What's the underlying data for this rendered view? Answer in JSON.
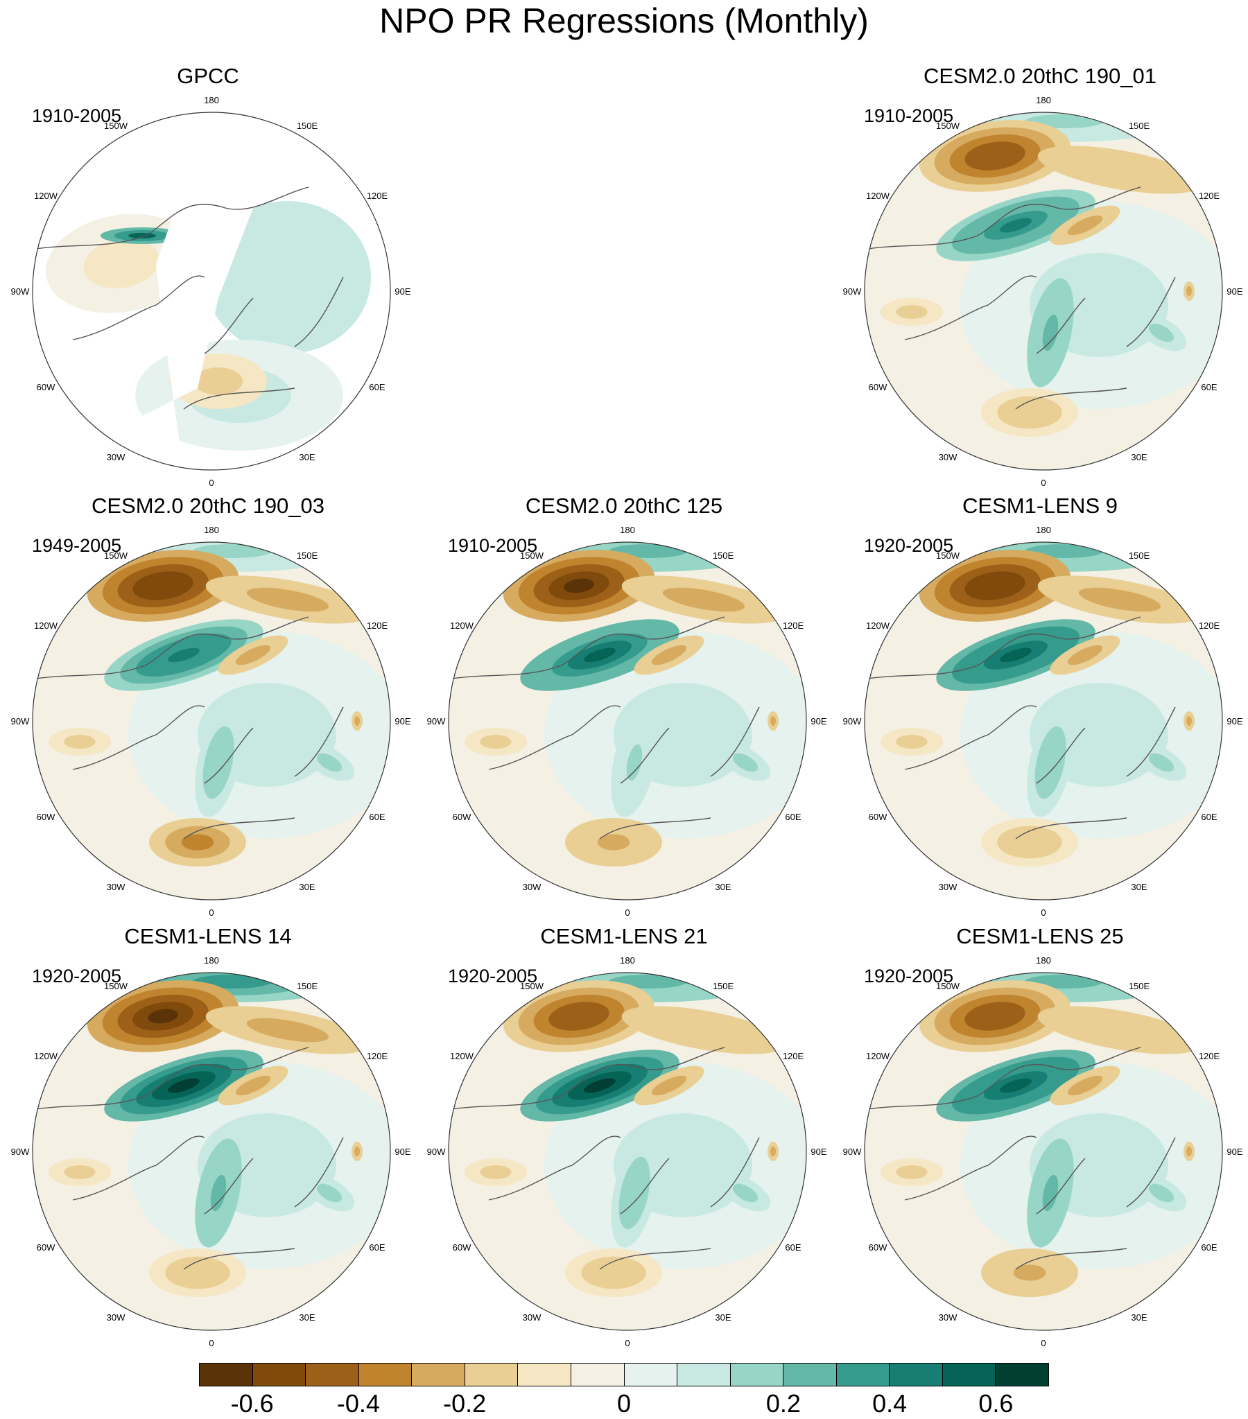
{
  "title": "NPO PR Regressions (Monthly)",
  "longitude_labels": [
    "180",
    "150E",
    "120E",
    "90E",
    "60E",
    "30E",
    "0",
    "30W",
    "60W",
    "90W",
    "120W",
    "150W"
  ],
  "panels": [
    {
      "id": "gpcc",
      "title": "GPCC",
      "period": "1910-2005",
      "row": 0,
      "col": 0,
      "obs": true,
      "features": {
        "aleutian_low": 0,
        "pacific_north": 0,
        "nw_america": 0.1,
        "atlantic_west": -0.05,
        "europe": -0.1
      }
    },
    {
      "id": "cesm2-190-01",
      "title": "CESM2.0 20thC 190_01",
      "period": "1910-2005",
      "row": 0,
      "col": 2,
      "obs": false,
      "features": {
        "aleutian_low": -0.5,
        "pacific_north": 0.1,
        "nw_america": 0.4,
        "atlantic_west": 0.2,
        "europe": -0.2
      }
    },
    {
      "id": "cesm2-190-03",
      "title": "CESM2.0 20thC 190_03",
      "period": "1949-2005",
      "row": 1,
      "col": 0,
      "obs": false,
      "features": {
        "aleutian_low": -0.6,
        "pacific_north": 0.1,
        "nw_america": 0.45,
        "atlantic_west": 0.15,
        "europe": -0.35
      }
    },
    {
      "id": "cesm2-125",
      "title": "CESM2.0 20thC 125",
      "period": "1910-2005",
      "row": 1,
      "col": 1,
      "obs": false,
      "features": {
        "aleutian_low": -0.65,
        "pacific_north": 0.2,
        "nw_america": 0.5,
        "atlantic_west": 0.1,
        "europe": -0.25
      }
    },
    {
      "id": "lens-9",
      "title": "CESM1-LENS 9",
      "period": "1920-2005",
      "row": 1,
      "col": 2,
      "obs": false,
      "features": {
        "aleutian_low": -0.6,
        "pacific_north": 0.2,
        "nw_america": 0.55,
        "atlantic_west": 0.15,
        "europe": -0.2
      }
    },
    {
      "id": "lens-14",
      "title": "CESM1-LENS 14",
      "period": "1920-2005",
      "row": 2,
      "col": 0,
      "obs": false,
      "features": {
        "aleutian_low": -0.65,
        "pacific_north": 0.3,
        "nw_america": 0.6,
        "atlantic_west": 0.2,
        "europe": -0.2
      }
    },
    {
      "id": "lens-21",
      "title": "CESM1-LENS 21",
      "period": "1920-2005",
      "row": 2,
      "col": 1,
      "obs": false,
      "features": {
        "aleutian_low": -0.5,
        "pacific_north": 0.25,
        "nw_america": 0.6,
        "atlantic_west": 0.15,
        "europe": -0.2
      }
    },
    {
      "id": "lens-25",
      "title": "CESM1-LENS 25",
      "period": "1920-2005",
      "row": 2,
      "col": 2,
      "obs": false,
      "features": {
        "aleutian_low": -0.5,
        "pacific_north": 0.25,
        "nw_america": 0.55,
        "atlantic_west": 0.2,
        "europe": -0.25
      }
    }
  ],
  "colorbar": {
    "colors": [
      "#5a3309",
      "#7f4a0c",
      "#9d6018",
      "#c0842f",
      "#d6ab5f",
      "#e9cf94",
      "#f5e6c4",
      "#f4f0e4",
      "#e6f2ee",
      "#c7e9e1",
      "#97d5c7",
      "#64b8a8",
      "#349b8d",
      "#167e72",
      "#056456",
      "#013f33"
    ],
    "tick_values": [
      -0.6,
      -0.4,
      -0.2,
      0,
      0.2,
      0.4,
      0.6
    ],
    "tick_labels": [
      "-0.6",
      "-0.4",
      "-0.2",
      "0",
      "0.2",
      "0.4",
      "0.6"
    ],
    "levels": [
      -0.7,
      -0.6,
      -0.5,
      -0.4,
      -0.3,
      -0.2,
      -0.1,
      -0.05,
      0,
      0.05,
      0.1,
      0.2,
      0.3,
      0.4,
      0.5,
      0.6,
      0.7
    ]
  }
}
